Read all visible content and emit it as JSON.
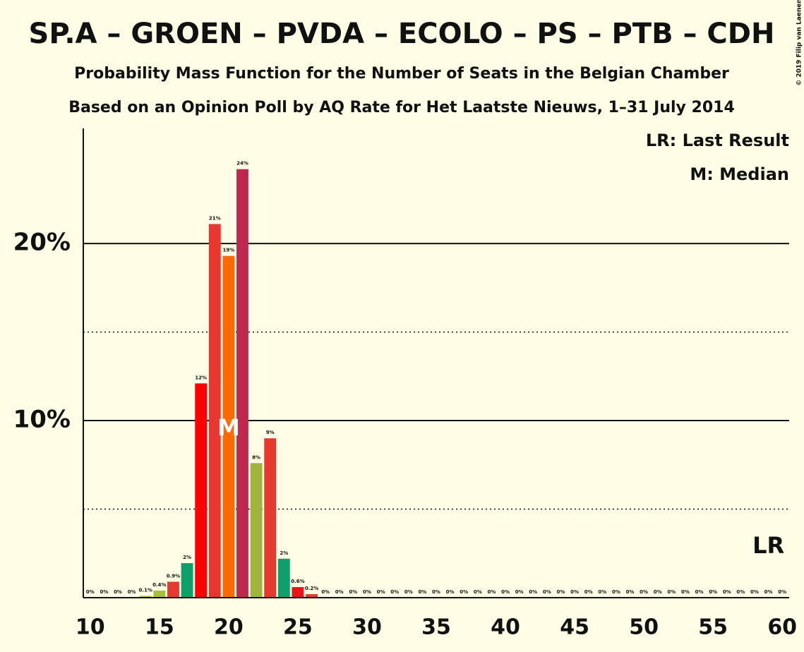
{
  "chart_data": {
    "type": "bar",
    "title": "SP.A – GROEN – PVDA – ECOLO – PS – PTB – CDH",
    "subtitle": "Probability Mass Function for the Number of Seats in the Belgian Chamber",
    "subtitle2": "Based on an Opinion Poll by AQ Rate for Het Laatste Nieuws, 1–31 July 2014",
    "copyright": "© 2019 Filip van Laenen",
    "legend": [
      "LR: Last Result",
      "M: Median"
    ],
    "median": {
      "x": 20,
      "label": "M"
    },
    "last_result": {
      "x": 59,
      "label": "LR"
    },
    "x": [
      10,
      11,
      12,
      13,
      14,
      15,
      16,
      17,
      18,
      19,
      20,
      21,
      22,
      23,
      24,
      25,
      26,
      27,
      28,
      29,
      30,
      31,
      32,
      33,
      34,
      35,
      36,
      37,
      38,
      39,
      40,
      41,
      42,
      43,
      44,
      45,
      46,
      47,
      48,
      49,
      50,
      51,
      52,
      53,
      54,
      55,
      56,
      57,
      58,
      59,
      60
    ],
    "values": [
      0,
      0,
      0,
      0,
      0.1,
      0.4,
      0.9,
      1.95,
      12.1,
      21.1,
      19.3,
      24.2,
      7.6,
      9.0,
      2.2,
      0.6,
      0.2,
      0,
      0,
      0,
      0,
      0,
      0,
      0,
      0,
      0,
      0,
      0,
      0,
      0,
      0,
      0,
      0,
      0,
      0,
      0,
      0,
      0,
      0,
      0,
      0,
      0,
      0,
      0,
      0,
      0,
      0,
      0,
      0,
      0,
      0
    ],
    "value_labels": [
      "0%",
      "0%",
      "0%",
      "0%",
      "0.1%",
      "0.4%",
      "0.9%",
      "2%",
      "12%",
      "21%",
      "19%",
      "24%",
      "8%",
      "9%",
      "2%",
      "0.6%",
      "0.2%",
      "0%",
      "0%",
      "0%",
      "0%",
      "0%",
      "0%",
      "0%",
      "0%",
      "0%",
      "0%",
      "0%",
      "0%",
      "0%",
      "0%",
      "0%",
      "0%",
      "0%",
      "0%",
      "0%",
      "0%",
      "0%",
      "0%",
      "0%",
      "0%",
      "0%",
      "0%",
      "0%",
      "0%",
      "0%",
      "0%",
      "0%",
      "0%",
      "0%",
      "0%"
    ],
    "colors": [
      "#e53a2e",
      "#e53a2e",
      "#e53a2e",
      "#e53a2e",
      "#a5c03c",
      "#a5c03c",
      "#e53a2e",
      "#0ea06a",
      "#ff0000",
      "#e8372e",
      "#ff6a00",
      "#c0294f",
      "#9fb53c",
      "#e53a2e",
      "#0ea06a",
      "#e8141c",
      "#e53a2e",
      "#e53a2e",
      "#e53a2e",
      "#e53a2e",
      "#e53a2e",
      "#e53a2e",
      "#e53a2e",
      "#e53a2e",
      "#e53a2e",
      "#e53a2e",
      "#e53a2e",
      "#e53a2e",
      "#e53a2e",
      "#e53a2e",
      "#e53a2e",
      "#e53a2e",
      "#e53a2e",
      "#e53a2e",
      "#e53a2e",
      "#e53a2e",
      "#e53a2e",
      "#e53a2e",
      "#e53a2e",
      "#e53a2e",
      "#e53a2e",
      "#e53a2e",
      "#e53a2e",
      "#e53a2e",
      "#e53a2e",
      "#e53a2e",
      "#e53a2e",
      "#e53a2e",
      "#e53a2e",
      "#e53a2e",
      "#e53a2e"
    ],
    "xlim": [
      9.5,
      60.5
    ],
    "xticks": [
      10,
      15,
      20,
      25,
      30,
      35,
      40,
      45,
      50,
      55,
      60
    ],
    "ylim": [
      0,
      26.5
    ],
    "yticks": [
      {
        "value": 10,
        "label": "10%"
      },
      {
        "value": 20,
        "label": "20%"
      }
    ],
    "minor_gridlines": [
      5,
      15
    ],
    "grid": true
  }
}
